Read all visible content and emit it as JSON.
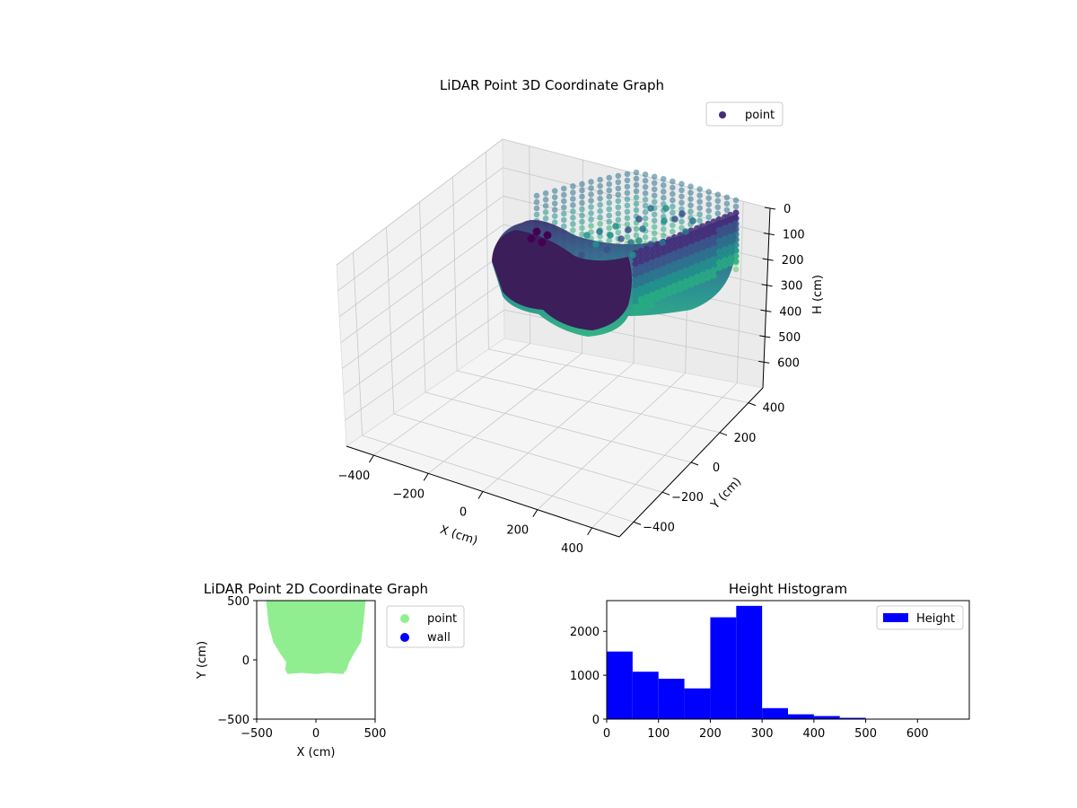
{
  "chart_data": [
    {
      "type": "scatter",
      "projection": "3d",
      "title": "LiDAR Point 3D Coordinate Graph",
      "xlabel": "X (cm)",
      "ylabel": "Y (cm)",
      "zlabel": "H (cm)",
      "xlim": [
        -500,
        500
      ],
      "ylim": [
        -500,
        500
      ],
      "zlim": [
        0,
        700
      ],
      "z_inverted": true,
      "xticks": [
        "−400",
        "−200",
        "0",
        "200",
        "400"
      ],
      "yticks": [
        "−400",
        "−200",
        "0",
        "200",
        "400"
      ],
      "zticks": [
        "0",
        "100",
        "200",
        "300",
        "400",
        "500",
        "600"
      ],
      "colormap": "viridis",
      "legend": {
        "position": "top-right",
        "entries": [
          {
            "label": "point",
            "color": "#472c7a"
          }
        ]
      },
      "grid": true,
      "point_shape": "roughly elliptical ring of wall points around the sensor, front (south) section densely filled",
      "ring": {
        "center": [
          0,
          0
        ],
        "radius_x": 420,
        "radius_y": 380
      },
      "height_range": [
        0,
        300
      ]
    },
    {
      "type": "scatter",
      "title": "LiDAR Point 2D Coordinate Graph",
      "xlabel": "X (cm)",
      "ylabel": "Y (cm)",
      "xlim": [
        -500,
        500
      ],
      "ylim": [
        -500,
        500
      ],
      "xticks": [
        "−500",
        "0",
        "500"
      ],
      "yticks": [
        "−500",
        "0",
        "500"
      ],
      "legend": {
        "position": "outside-right",
        "entries": [
          {
            "label": "point",
            "color": "#90ee90"
          },
          {
            "label": "wall",
            "color": "#0000ff"
          }
        ]
      },
      "outline": [
        [
          -420,
          500
        ],
        [
          420,
          500
        ],
        [
          400,
          300
        ],
        [
          380,
          150
        ],
        [
          320,
          50
        ],
        [
          280,
          -20
        ],
        [
          260,
          -80
        ],
        [
          230,
          -120
        ],
        [
          100,
          -110
        ],
        [
          0,
          -120
        ],
        [
          -120,
          -110
        ],
        [
          -240,
          -120
        ],
        [
          -260,
          -80
        ],
        [
          -250,
          -20
        ],
        [
          -300,
          50
        ],
        [
          -360,
          150
        ],
        [
          -400,
          300
        ]
      ]
    },
    {
      "type": "bar",
      "subtype": "histogram",
      "title": "Height Histogram",
      "xlim": [
        0,
        700
      ],
      "ylim": [
        0,
        2700
      ],
      "xticks": [
        0,
        100,
        200,
        300,
        400,
        500,
        600
      ],
      "yticks": [
        0,
        1000,
        2000
      ],
      "legend": {
        "position": "top-right",
        "entries": [
          {
            "label": "Height",
            "color": "#0000ff"
          }
        ]
      },
      "bin_edges": [
        0,
        50,
        100,
        150,
        200,
        250,
        300,
        350,
        400,
        450,
        500,
        550,
        600,
        650,
        700
      ],
      "values": [
        1540,
        1080,
        920,
        700,
        2320,
        2580,
        250,
        110,
        70,
        30,
        0,
        0,
        0,
        0
      ]
    }
  ]
}
